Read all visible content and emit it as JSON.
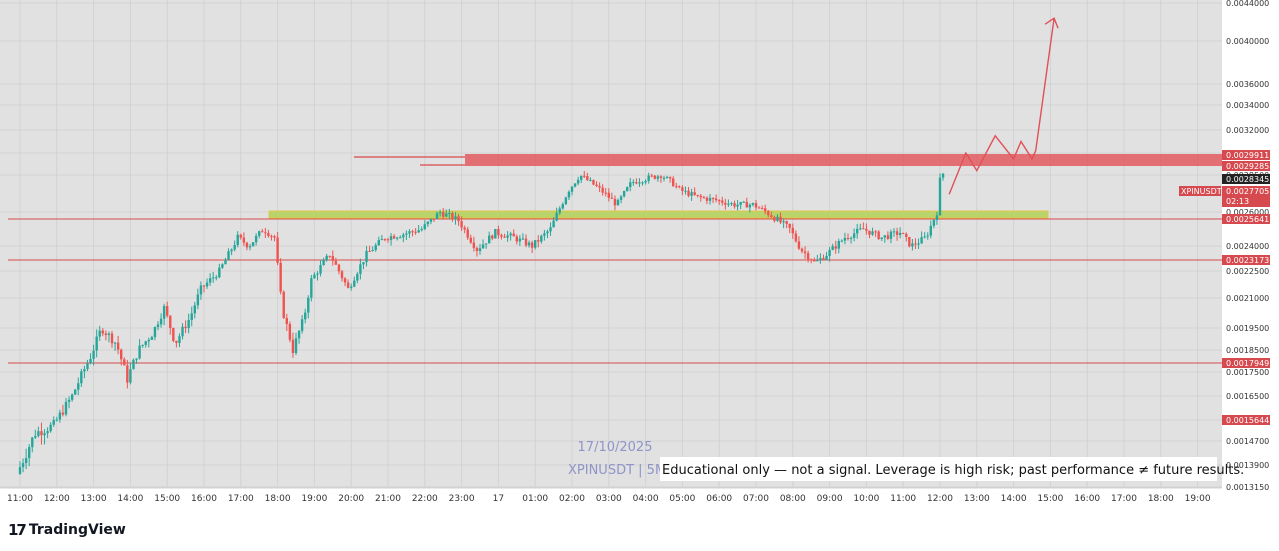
{
  "chart_data": {
    "type": "candlestick",
    "symbol_watermark": "XPINUSDT | 5M",
    "date_watermark": "17/10/2025",
    "disclaimer": "Educational only — not a signal. Leverage is high risk; past performance ≠ future results.",
    "symbol_tag": "XPINUSDT",
    "countdown": "02:13",
    "ylim": [
      0.001315,
      0.0044
    ],
    "y_ticks": [
      "0.0044000",
      "0.0040000",
      "0.0036000",
      "0.0034000",
      "0.0032000",
      "0.0030000",
      "0.0028500",
      "0.0026000",
      "0.0024000",
      "0.0022500",
      "0.0021000",
      "0.0019500",
      "0.0018500",
      "0.0017500",
      "0.0016500",
      "0.0015500",
      "0.0014700",
      "0.0013900",
      "0.0013150"
    ],
    "x_ticks": [
      "11:00",
      "12:00",
      "13:00",
      "14:00",
      "15:00",
      "16:00",
      "17:00",
      "18:00",
      "19:00",
      "20:00",
      "21:00",
      "22:00",
      "23:00",
      "17",
      "01:00",
      "02:00",
      "03:00",
      "04:00",
      "05:00",
      "06:00",
      "07:00",
      "08:00",
      "09:00",
      "10:00",
      "11:00",
      "12:00",
      "13:00",
      "14:00",
      "15:00",
      "16:00",
      "17:00",
      "18:00",
      "19:00"
    ],
    "levels": [
      "0.0029911",
      "0.0029285",
      "0.0028345",
      "0.0027705",
      "0.0025641",
      "0.0023173",
      "0.0017949",
      "0.0015644"
    ],
    "price_path": [
      [
        11.0,
        0.00136
      ],
      [
        11.5,
        0.0015
      ],
      [
        12.0,
        0.00153
      ],
      [
        12.5,
        0.00165
      ],
      [
        13.0,
        0.00182
      ],
      [
        13.3,
        0.00195
      ],
      [
        13.7,
        0.00188
      ],
      [
        14.0,
        0.00172
      ],
      [
        14.3,
        0.00185
      ],
      [
        14.7,
        0.00193
      ],
      [
        15.0,
        0.00205
      ],
      [
        15.3,
        0.00188
      ],
      [
        15.7,
        0.002
      ],
      [
        16.0,
        0.00215
      ],
      [
        16.5,
        0.00225
      ],
      [
        17.0,
        0.00245
      ],
      [
        17.3,
        0.0024
      ],
      [
        17.7,
        0.0025
      ],
      [
        18.0,
        0.00245
      ],
      [
        18.2,
        0.00205
      ],
      [
        18.5,
        0.00185
      ],
      [
        18.8,
        0.002
      ],
      [
        19.0,
        0.0022
      ],
      [
        19.5,
        0.00235
      ],
      [
        20.0,
        0.00215
      ],
      [
        20.5,
        0.00235
      ],
      [
        21.0,
        0.00245
      ],
      [
        21.5,
        0.00247
      ],
      [
        22.0,
        0.0025
      ],
      [
        22.5,
        0.0026
      ],
      [
        23.0,
        0.00255
      ],
      [
        23.5,
        0.00238
      ],
      [
        24.0,
        0.00248
      ],
      [
        24.5,
        0.00245
      ],
      [
        25.0,
        0.0024
      ],
      [
        25.5,
        0.0025
      ],
      [
        26.0,
        0.00275
      ],
      [
        26.3,
        0.00285
      ],
      [
        26.7,
        0.00278
      ],
      [
        27.0,
        0.00272
      ],
      [
        27.3,
        0.00265
      ],
      [
        27.7,
        0.0028
      ],
      [
        28.0,
        0.00282
      ],
      [
        28.5,
        0.00285
      ],
      [
        28.8,
        0.0028
      ],
      [
        29.0,
        0.00275
      ],
      [
        29.5,
        0.0027
      ],
      [
        30.0,
        0.00268
      ],
      [
        30.5,
        0.00265
      ],
      [
        31.0,
        0.00265
      ],
      [
        31.5,
        0.00258
      ],
      [
        32.0,
        0.0025
      ],
      [
        32.3,
        0.00238
      ],
      [
        32.7,
        0.0023
      ],
      [
        33.0,
        0.00235
      ],
      [
        33.5,
        0.00245
      ],
      [
        34.0,
        0.0025
      ],
      [
        34.5,
        0.00245
      ],
      [
        35.0,
        0.00248
      ],
      [
        35.3,
        0.0024
      ],
      [
        35.7,
        0.00245
      ],
      [
        36.0,
        0.0026
      ],
      [
        36.1,
        0.00286
      ]
    ],
    "forecast_path": [
      [
        36.25,
        0.00272
      ],
      [
        36.7,
        0.003
      ],
      [
        37.0,
        0.00288
      ],
      [
        37.5,
        0.00315
      ],
      [
        38.0,
        0.00296
      ],
      [
        38.2,
        0.0031
      ],
      [
        38.5,
        0.00296
      ],
      [
        38.6,
        0.00302
      ],
      [
        39.1,
        0.00424
      ]
    ]
  }
}
